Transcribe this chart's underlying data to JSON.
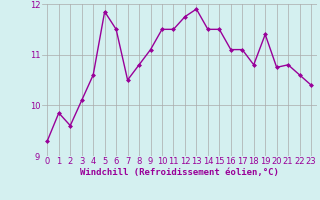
{
  "x": [
    0,
    1,
    2,
    3,
    4,
    5,
    6,
    7,
    8,
    9,
    10,
    11,
    12,
    13,
    14,
    15,
    16,
    17,
    18,
    19,
    20,
    21,
    22,
    23
  ],
  "y": [
    9.3,
    9.85,
    9.6,
    10.1,
    10.6,
    11.85,
    11.5,
    10.5,
    10.8,
    11.1,
    11.5,
    11.5,
    11.75,
    11.9,
    11.5,
    11.5,
    11.1,
    11.1,
    10.8,
    11.4,
    10.75,
    10.8,
    10.6,
    10.4
  ],
  "line_color": "#990099",
  "marker": "D",
  "markersize": 2.0,
  "bg_color": "#d4f0f0",
  "grid_color": "#aaaaaa",
  "xlabel": "Windchill (Refroidissement éolien,°C)",
  "ylabel": "",
  "ylim": [
    9.0,
    12.0
  ],
  "xlim_min": -0.5,
  "xlim_max": 23.5,
  "yticks": [
    9,
    10,
    11,
    12
  ],
  "xticks": [
    0,
    1,
    2,
    3,
    4,
    5,
    6,
    7,
    8,
    9,
    10,
    11,
    12,
    13,
    14,
    15,
    16,
    17,
    18,
    19,
    20,
    21,
    22,
    23
  ],
  "tick_fontsize": 6,
  "xlabel_fontsize": 6.5,
  "linewidth": 1.0
}
